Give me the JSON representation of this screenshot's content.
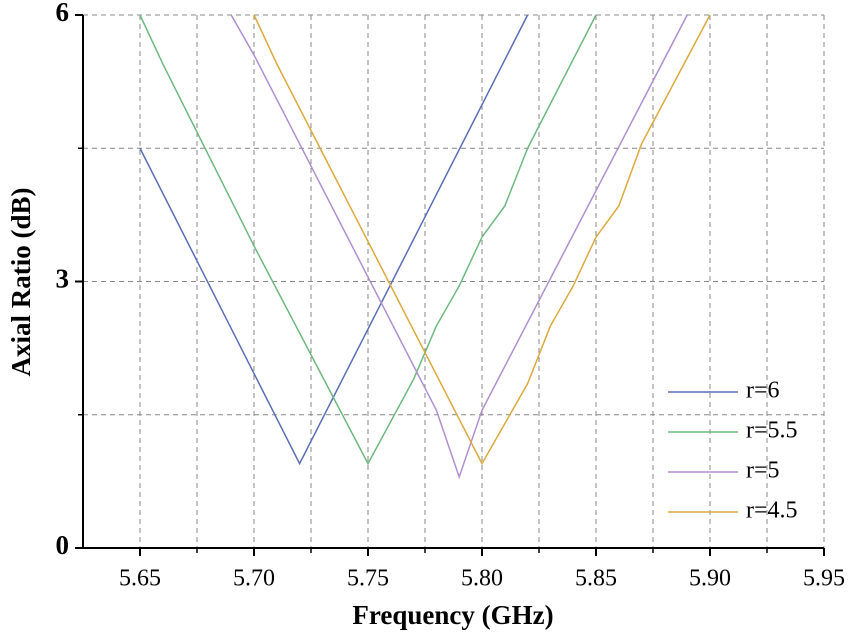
{
  "chart_data": {
    "type": "line",
    "xlabel": "Frequency (GHz)",
    "ylabel": "Axial Ratio (dB)",
    "xlim": [
      5.625,
      5.95
    ],
    "ylim": [
      0,
      6
    ],
    "xticks": [
      5.65,
      {
        "value": 5.7,
        "label": "5.70"
      },
      5.75,
      {
        "value": 5.8,
        "label": "5.80"
      },
      5.85,
      {
        "value": 5.9,
        "label": "5.90"
      },
      5.95
    ],
    "yticks": [
      0,
      3,
      6
    ],
    "xminorticks": [
      5.675,
      5.725,
      5.775,
      5.825,
      5.875,
      5.925
    ],
    "yminorticks": [
      1.5,
      4.5
    ],
    "grid": true,
    "legend": "lower right",
    "series": [
      {
        "name": "r=6",
        "color": "#5b6eb5",
        "x": [
          5.65,
          5.72,
          5.82
        ],
        "values": [
          4.5,
          0.95,
          6
        ]
      },
      {
        "name": "r=5.5",
        "color": "#6cb87f",
        "x": [
          5.65,
          5.66,
          5.7,
          5.75,
          5.77,
          5.78,
          5.79,
          5.8,
          5.81,
          5.82,
          5.85
        ],
        "values": [
          6,
          5.45,
          3.4,
          0.95,
          1.9,
          2.5,
          2.95,
          3.5,
          3.85,
          4.5,
          6
        ]
      },
      {
        "name": "r=5",
        "color": "#b08fd0",
        "x": [
          5.69,
          5.7,
          5.78,
          5.79,
          5.8,
          5.89
        ],
        "values": [
          6,
          5.55,
          1.55,
          0.8,
          1.55,
          6
        ]
      },
      {
        "name": "r=4.5",
        "color": "#dba93c",
        "x": [
          5.7,
          5.71,
          5.8,
          5.82,
          5.83,
          5.84,
          5.85,
          5.86,
          5.87,
          5.9
        ],
        "values": [
          6,
          5.45,
          0.95,
          1.85,
          2.5,
          2.95,
          3.5,
          3.85,
          4.55,
          6
        ]
      }
    ]
  }
}
